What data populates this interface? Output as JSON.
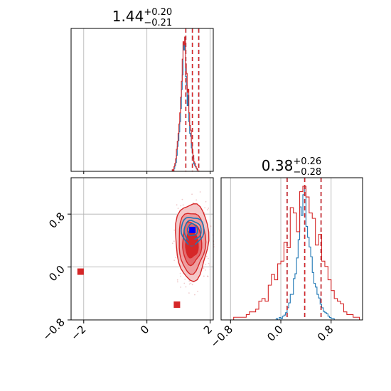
{
  "chart_data": {
    "type": "corner",
    "parameters": [
      {
        "title_value": "1.44",
        "title_plus": "+0.20",
        "title_minus": "−0.21"
      },
      {
        "title_value": "0.38",
        "title_plus": "+0.26",
        "title_minus": "−0.28"
      }
    ],
    "x_range_param1": [
      -2.4,
      2.1
    ],
    "x_range_param2": [
      -0.95,
      1.3
    ],
    "y_range_param2": [
      -0.8,
      1.35
    ],
    "ticks_param1": [
      {
        "value": -2,
        "label": "−2"
      },
      {
        "value": 0,
        "label": "0"
      },
      {
        "value": 2,
        "label": "2"
      }
    ],
    "ticks_param2": [
      {
        "value": -0.8,
        "label": "−0.8"
      },
      {
        "value": 0.0,
        "label": "0.0"
      },
      {
        "value": 0.8,
        "label": "0.8"
      }
    ],
    "grid": true,
    "series": [
      {
        "color": "#1f77b4",
        "param1_quantiles": [
          1.23,
          1.44,
          1.64
        ],
        "param2_quantiles": [
          0.1,
          0.38,
          0.64
        ],
        "param1_hist": {
          "edges": [
            0.75,
            1.85
          ],
          "counts": [
            0,
            0,
            1,
            0,
            2,
            4,
            6,
            11,
            17,
            21,
            27,
            34,
            43,
            56,
            66,
            88,
            83,
            92,
            65,
            59,
            45,
            52,
            34,
            26,
            24,
            16,
            13,
            9,
            5,
            4,
            3,
            2,
            1,
            0,
            0,
            0,
            0,
            0,
            0,
            0,
            0,
            0
          ]
        },
        "param2_hist": {
          "edges": [
            -0.1,
            0.9
          ],
          "counts": [
            0,
            1,
            0,
            2,
            1,
            3,
            4,
            6,
            10,
            14,
            21,
            21,
            34,
            38,
            51,
            66,
            93,
            86,
            103,
            110,
            77,
            68,
            60,
            52,
            39,
            30,
            27,
            21,
            18,
            13,
            10,
            7,
            6,
            5,
            3,
            2,
            1,
            1,
            0,
            0
          ]
        },
        "contours": [
          {
            "cx": 1.44,
            "cy": 0.55,
            "rx": 0.36,
            "ry": 0.21
          },
          {
            "cx": 1.44,
            "cy": 0.55,
            "rx": 0.27,
            "ry": 0.15
          },
          {
            "cx": 1.44,
            "cy": 0.56,
            "rx": 0.16,
            "ry": 0.09
          }
        ],
        "marker": {
          "x": 1.44,
          "y": 0.56,
          "color": "#0000ff"
        }
      },
      {
        "color": "#d62728",
        "param1_quantiles": [
          1.23,
          1.44,
          1.64
        ],
        "param2_quantiles": [
          0.1,
          0.38,
          0.64
        ],
        "param1_hist": {
          "edges": [
            0.75,
            1.85
          ],
          "counts": [
            0,
            0,
            1,
            0,
            3,
            5,
            8,
            14,
            19,
            24,
            30,
            37,
            47,
            57,
            71,
            82,
            80,
            85,
            68,
            62,
            50,
            52,
            37,
            29,
            26,
            18,
            14,
            10,
            6,
            5,
            3,
            2,
            1,
            0,
            0,
            0,
            0,
            0,
            0,
            0,
            0,
            0
          ]
        },
        "param2_hist": {
          "edges": [
            -0.9,
            1.3
          ],
          "counts": [
            0,
            0,
            0,
            1,
            1,
            1,
            1,
            2,
            3,
            3,
            4,
            7,
            8,
            7,
            13,
            17,
            15,
            21,
            22,
            29,
            27,
            42,
            40,
            33,
            48,
            50,
            46,
            40,
            38,
            28,
            32,
            22,
            20,
            15,
            11,
            8,
            7,
            6,
            3,
            2,
            2,
            1,
            1,
            0
          ]
        },
        "contours": [
          {
            "cx": 1.42,
            "cy": 0.4,
            "rx": 0.52,
            "ry": 0.58
          },
          {
            "cx": 1.42,
            "cy": 0.38,
            "rx": 0.42,
            "ry": 0.46
          },
          {
            "cx": 1.42,
            "cy": 0.36,
            "rx": 0.3,
            "ry": 0.32
          },
          {
            "cx": 1.42,
            "cy": 0.34,
            "rx": 0.2,
            "ry": 0.2
          }
        ],
        "marker": {
          "x": 1.42,
          "y": 0.37,
          "color": "#d62728"
        },
        "extra_points": [
          {
            "x": -2.1,
            "y": -0.07
          },
          {
            "x": 0.95,
            "y": -0.57
          }
        ]
      }
    ]
  }
}
